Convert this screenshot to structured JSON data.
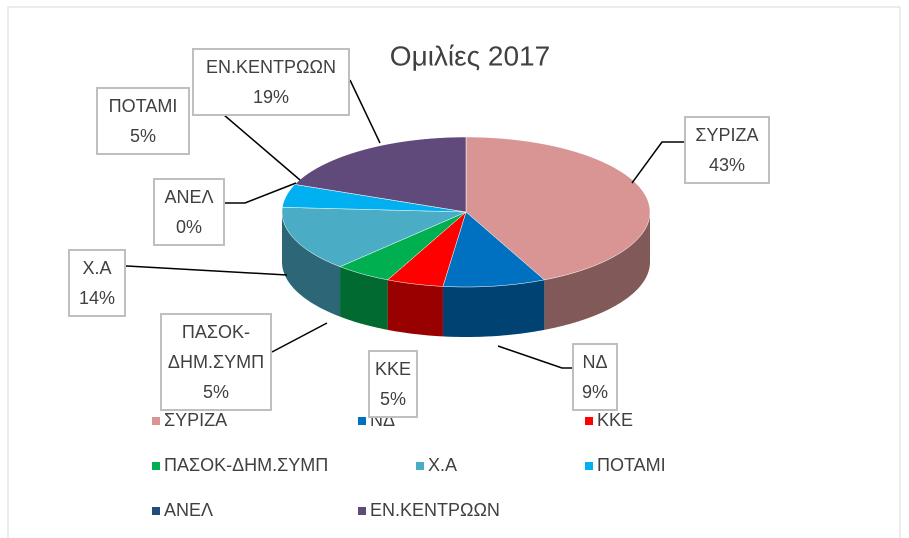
{
  "chart_data": {
    "type": "pie3d",
    "title": "Ομιλίες 2017",
    "categories": [
      "ΣΥΡΙΖΑ",
      "ΝΔ",
      "ΚΚΕ",
      "ΠΑΣΟΚ-ΔΗΜ.ΣΥΜΠ",
      "Χ.Α",
      "ΠΟΤΑΜΙ",
      "ΑΝΕΛ",
      "ΕΝ.ΚΕΝΤΡΩΩΝ"
    ],
    "values": [
      43,
      9,
      5,
      5,
      14,
      5,
      0,
      19
    ],
    "value_labels": [
      "43%",
      "9%",
      "5%",
      "5%",
      "14%",
      "5%",
      "0%",
      "19%"
    ],
    "colors": [
      "#d99594",
      "#0070c0",
      "#ff0000",
      "#00b050",
      "#4bacc6",
      "#00b0f0",
      "#1f4e79",
      "#604a7b"
    ]
  }
}
